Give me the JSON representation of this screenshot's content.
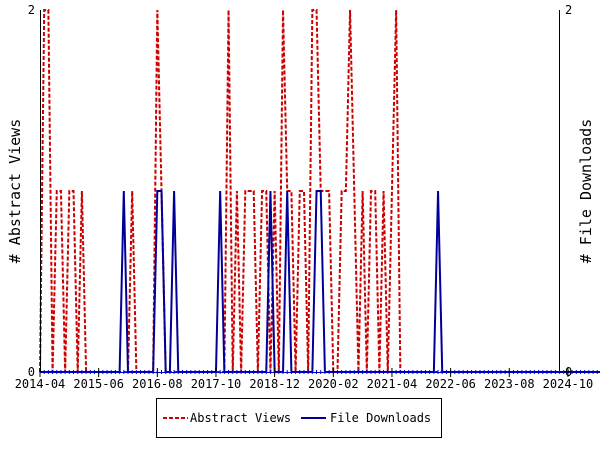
{
  "chart_data": {
    "type": "line",
    "y_left_label": "# Abstract Views",
    "y_right_label": "# File Downloads",
    "y_left_ticks": [
      "0",
      "2"
    ],
    "y_right_ticks": [
      "0",
      "2"
    ],
    "ylim": [
      0,
      2
    ],
    "x_tick_labels": [
      "2014-04",
      "2015-06",
      "2016-08",
      "2017-10",
      "2018-12",
      "2020-02",
      "2021-04",
      "2022-06",
      "2023-08",
      "2024-10"
    ],
    "x_range": [
      "2014-04",
      "2025-12"
    ],
    "legend_position": "bottom",
    "grid": false,
    "series": [
      {
        "name": "Abstract Views",
        "color": "#cc0000",
        "style": "dashed",
        "points": [
          [
            "2014-04",
            0
          ],
          [
            "2014-05",
            2
          ],
          [
            "2014-06",
            2
          ],
          [
            "2014-07",
            0
          ],
          [
            "2014-08",
            1
          ],
          [
            "2014-09",
            1
          ],
          [
            "2014-10",
            0
          ],
          [
            "2014-11",
            1
          ],
          [
            "2014-12",
            1
          ],
          [
            "2015-01",
            0
          ],
          [
            "2015-02",
            1
          ],
          [
            "2015-03",
            0
          ],
          [
            "2015-04",
            0
          ],
          [
            "2015-05",
            0
          ],
          [
            "2015-06",
            0
          ],
          [
            "2015-07",
            0
          ],
          [
            "2015-08",
            0
          ],
          [
            "2015-09",
            0
          ],
          [
            "2015-10",
            0
          ],
          [
            "2015-11",
            0
          ],
          [
            "2015-12",
            0
          ],
          [
            "2016-01",
            0
          ],
          [
            "2016-02",
            1
          ],
          [
            "2016-03",
            0
          ],
          [
            "2016-04",
            0
          ],
          [
            "2016-05",
            0
          ],
          [
            "2016-06",
            0
          ],
          [
            "2016-07",
            0
          ],
          [
            "2016-08",
            2
          ],
          [
            "2016-09",
            1
          ],
          [
            "2016-10",
            0
          ],
          [
            "2016-11",
            0
          ],
          [
            "2016-12",
            0
          ],
          [
            "2017-01",
            0
          ],
          [
            "2017-02",
            0
          ],
          [
            "2017-03",
            0
          ],
          [
            "2017-04",
            0
          ],
          [
            "2017-05",
            0
          ],
          [
            "2017-06",
            0
          ],
          [
            "2017-07",
            0
          ],
          [
            "2017-08",
            0
          ],
          [
            "2017-09",
            0
          ],
          [
            "2017-10",
            0
          ],
          [
            "2017-11",
            0
          ],
          [
            "2017-12",
            0
          ],
          [
            "2018-01",
            2
          ],
          [
            "2018-02",
            0
          ],
          [
            "2018-03",
            1
          ],
          [
            "2018-04",
            0
          ],
          [
            "2018-05",
            1
          ],
          [
            "2018-06",
            1
          ],
          [
            "2018-07",
            1
          ],
          [
            "2018-08",
            0
          ],
          [
            "2018-09",
            1
          ],
          [
            "2018-10",
            1
          ],
          [
            "2018-11",
            0
          ],
          [
            "2018-12",
            1
          ],
          [
            "2019-01",
            0
          ],
          [
            "2019-02",
            2
          ],
          [
            "2019-03",
            1
          ],
          [
            "2019-04",
            1
          ],
          [
            "2019-05",
            0
          ],
          [
            "2019-06",
            1
          ],
          [
            "2019-07",
            1
          ],
          [
            "2019-08",
            0
          ],
          [
            "2019-09",
            2
          ],
          [
            "2019-10",
            2
          ],
          [
            "2019-11",
            1
          ],
          [
            "2019-12",
            1
          ],
          [
            "2020-01",
            1
          ],
          [
            "2020-02",
            0
          ],
          [
            "2020-03",
            0
          ],
          [
            "2020-04",
            1
          ],
          [
            "2020-05",
            1
          ],
          [
            "2020-06",
            2
          ],
          [
            "2020-07",
            1
          ],
          [
            "2020-08",
            0
          ],
          [
            "2020-09",
            1
          ],
          [
            "2020-10",
            0
          ],
          [
            "2020-11",
            1
          ],
          [
            "2020-12",
            1
          ],
          [
            "2021-01",
            0
          ],
          [
            "2021-02",
            1
          ],
          [
            "2021-03",
            0
          ],
          [
            "2021-04",
            1
          ],
          [
            "2021-05",
            2
          ],
          [
            "2021-06",
            0
          ],
          [
            "2021-07",
            0
          ],
          [
            "2021-08",
            0
          ],
          [
            "2021-09",
            0
          ],
          [
            "2021-10",
            0
          ],
          [
            "2021-11",
            0
          ],
          [
            "2021-12",
            0
          ],
          [
            "2022-01",
            0
          ],
          [
            "2022-02",
            0
          ],
          [
            "2022-03",
            0
          ],
          [
            "2022-04",
            0
          ],
          [
            "2022-05",
            0
          ],
          [
            "2022-06",
            0
          ],
          [
            "2022-07",
            0
          ],
          [
            "2022-08",
            0
          ],
          [
            "2022-09",
            0
          ],
          [
            "2022-10",
            0
          ],
          [
            "2022-11",
            0
          ],
          [
            "2022-12",
            0
          ],
          [
            "2023-01",
            0
          ],
          [
            "2023-02",
            0
          ],
          [
            "2023-03",
            0
          ],
          [
            "2023-04",
            0
          ],
          [
            "2023-05",
            0
          ],
          [
            "2023-06",
            0
          ],
          [
            "2023-07",
            0
          ],
          [
            "2023-08",
            0
          ],
          [
            "2023-09",
            0
          ],
          [
            "2023-10",
            0
          ],
          [
            "2023-11",
            0
          ],
          [
            "2023-12",
            0
          ],
          [
            "2024-01",
            0
          ],
          [
            "2024-02",
            0
          ],
          [
            "2024-03",
            0
          ],
          [
            "2024-04",
            0
          ],
          [
            "2024-05",
            0
          ],
          [
            "2024-06",
            0
          ],
          [
            "2024-07",
            0
          ],
          [
            "2024-08",
            0
          ],
          [
            "2024-09",
            0
          ],
          [
            "2024-10",
            0
          ],
          [
            "2024-11",
            0
          ],
          [
            "2024-12",
            0
          ],
          [
            "2025-01",
            0
          ],
          [
            "2025-02",
            0
          ],
          [
            "2025-03",
            0
          ],
          [
            "2025-04",
            0
          ],
          [
            "2025-05",
            0
          ],
          [
            "2025-06",
            0
          ],
          [
            "2025-07",
            0
          ],
          [
            "2025-08",
            0
          ],
          [
            "2025-09",
            0
          ],
          [
            "2025-10",
            0
          ],
          [
            "2025-11",
            0
          ],
          [
            "2025-12",
            0
          ]
        ]
      },
      {
        "name": "File Downloads",
        "color": "#000099",
        "style": "solid",
        "points": [
          [
            "2014-04",
            0
          ],
          [
            "2014-05",
            0
          ],
          [
            "2014-06",
            0
          ],
          [
            "2014-07",
            0
          ],
          [
            "2014-08",
            0
          ],
          [
            "2014-09",
            0
          ],
          [
            "2014-10",
            0
          ],
          [
            "2014-11",
            0
          ],
          [
            "2014-12",
            0
          ],
          [
            "2015-01",
            0
          ],
          [
            "2015-02",
            0
          ],
          [
            "2015-03",
            0
          ],
          [
            "2015-04",
            0
          ],
          [
            "2015-05",
            0
          ],
          [
            "2015-06",
            0
          ],
          [
            "2015-07",
            0
          ],
          [
            "2015-08",
            0
          ],
          [
            "2015-09",
            0
          ],
          [
            "2015-10",
            0
          ],
          [
            "2015-11",
            0
          ],
          [
            "2015-12",
            1
          ],
          [
            "2016-01",
            0
          ],
          [
            "2016-02",
            0
          ],
          [
            "2016-03",
            0
          ],
          [
            "2016-04",
            0
          ],
          [
            "2016-05",
            0
          ],
          [
            "2016-06",
            0
          ],
          [
            "2016-07",
            0
          ],
          [
            "2016-08",
            1
          ],
          [
            "2016-09",
            1
          ],
          [
            "2016-10",
            0
          ],
          [
            "2016-11",
            0
          ],
          [
            "2016-12",
            1
          ],
          [
            "2017-01",
            0
          ],
          [
            "2017-02",
            0
          ],
          [
            "2017-03",
            0
          ],
          [
            "2017-04",
            0
          ],
          [
            "2017-05",
            0
          ],
          [
            "2017-06",
            0
          ],
          [
            "2017-07",
            0
          ],
          [
            "2017-08",
            0
          ],
          [
            "2017-09",
            0
          ],
          [
            "2017-10",
            0
          ],
          [
            "2017-11",
            1
          ],
          [
            "2017-12",
            0
          ],
          [
            "2018-01",
            0
          ],
          [
            "2018-02",
            0
          ],
          [
            "2018-03",
            0
          ],
          [
            "2018-04",
            0
          ],
          [
            "2018-05",
            0
          ],
          [
            "2018-06",
            0
          ],
          [
            "2018-07",
            0
          ],
          [
            "2018-08",
            0
          ],
          [
            "2018-09",
            0
          ],
          [
            "2018-10",
            0
          ],
          [
            "2018-11",
            1
          ],
          [
            "2018-12",
            0
          ],
          [
            "2019-01",
            0
          ],
          [
            "2019-02",
            0
          ],
          [
            "2019-03",
            1
          ],
          [
            "2019-04",
            0
          ],
          [
            "2019-05",
            0
          ],
          [
            "2019-06",
            0
          ],
          [
            "2019-07",
            0
          ],
          [
            "2019-08",
            0
          ],
          [
            "2019-09",
            0
          ],
          [
            "2019-10",
            1
          ],
          [
            "2019-11",
            1
          ],
          [
            "2019-12",
            0
          ],
          [
            "2020-01",
            0
          ],
          [
            "2020-02",
            0
          ],
          [
            "2020-03",
            0
          ],
          [
            "2020-04",
            0
          ],
          [
            "2020-05",
            0
          ],
          [
            "2020-06",
            0
          ],
          [
            "2020-07",
            0
          ],
          [
            "2020-08",
            0
          ],
          [
            "2020-09",
            0
          ],
          [
            "2020-10",
            0
          ],
          [
            "2020-11",
            0
          ],
          [
            "2020-12",
            0
          ],
          [
            "2021-01",
            0
          ],
          [
            "2021-02",
            0
          ],
          [
            "2021-03",
            0
          ],
          [
            "2021-04",
            0
          ],
          [
            "2021-05",
            0
          ],
          [
            "2021-06",
            0
          ],
          [
            "2021-07",
            0
          ],
          [
            "2021-08",
            0
          ],
          [
            "2021-09",
            0
          ],
          [
            "2021-10",
            0
          ],
          [
            "2021-11",
            0
          ],
          [
            "2021-12",
            0
          ],
          [
            "2022-01",
            0
          ],
          [
            "2022-02",
            0
          ],
          [
            "2022-03",
            1
          ],
          [
            "2022-04",
            0
          ],
          [
            "2022-05",
            0
          ],
          [
            "2022-06",
            0
          ],
          [
            "2022-07",
            0
          ],
          [
            "2022-08",
            0
          ],
          [
            "2022-09",
            0
          ],
          [
            "2022-10",
            0
          ],
          [
            "2022-11",
            0
          ],
          [
            "2022-12",
            0
          ],
          [
            "2023-01",
            0
          ],
          [
            "2023-02",
            0
          ],
          [
            "2023-03",
            0
          ],
          [
            "2023-04",
            0
          ],
          [
            "2023-05",
            0
          ],
          [
            "2023-06",
            0
          ],
          [
            "2023-07",
            0
          ],
          [
            "2023-08",
            0
          ],
          [
            "2023-09",
            0
          ],
          [
            "2023-10",
            0
          ],
          [
            "2023-11",
            0
          ],
          [
            "2023-12",
            0
          ],
          [
            "2024-01",
            0
          ],
          [
            "2024-02",
            0
          ],
          [
            "2024-03",
            0
          ],
          [
            "2024-04",
            0
          ],
          [
            "2024-05",
            0
          ],
          [
            "2024-06",
            0
          ],
          [
            "2024-07",
            0
          ],
          [
            "2024-08",
            0
          ],
          [
            "2024-09",
            0
          ],
          [
            "2024-10",
            0
          ],
          [
            "2024-11",
            0
          ],
          [
            "2024-12",
            0
          ],
          [
            "2025-01",
            0
          ],
          [
            "2025-02",
            0
          ],
          [
            "2025-03",
            0
          ],
          [
            "2025-04",
            0
          ],
          [
            "2025-05",
            0
          ],
          [
            "2025-06",
            0
          ],
          [
            "2025-07",
            0
          ],
          [
            "2025-08",
            0
          ],
          [
            "2025-09",
            0
          ],
          [
            "2025-10",
            0
          ],
          [
            "2025-11",
            0
          ],
          [
            "2025-12",
            0
          ]
        ]
      }
    ]
  }
}
